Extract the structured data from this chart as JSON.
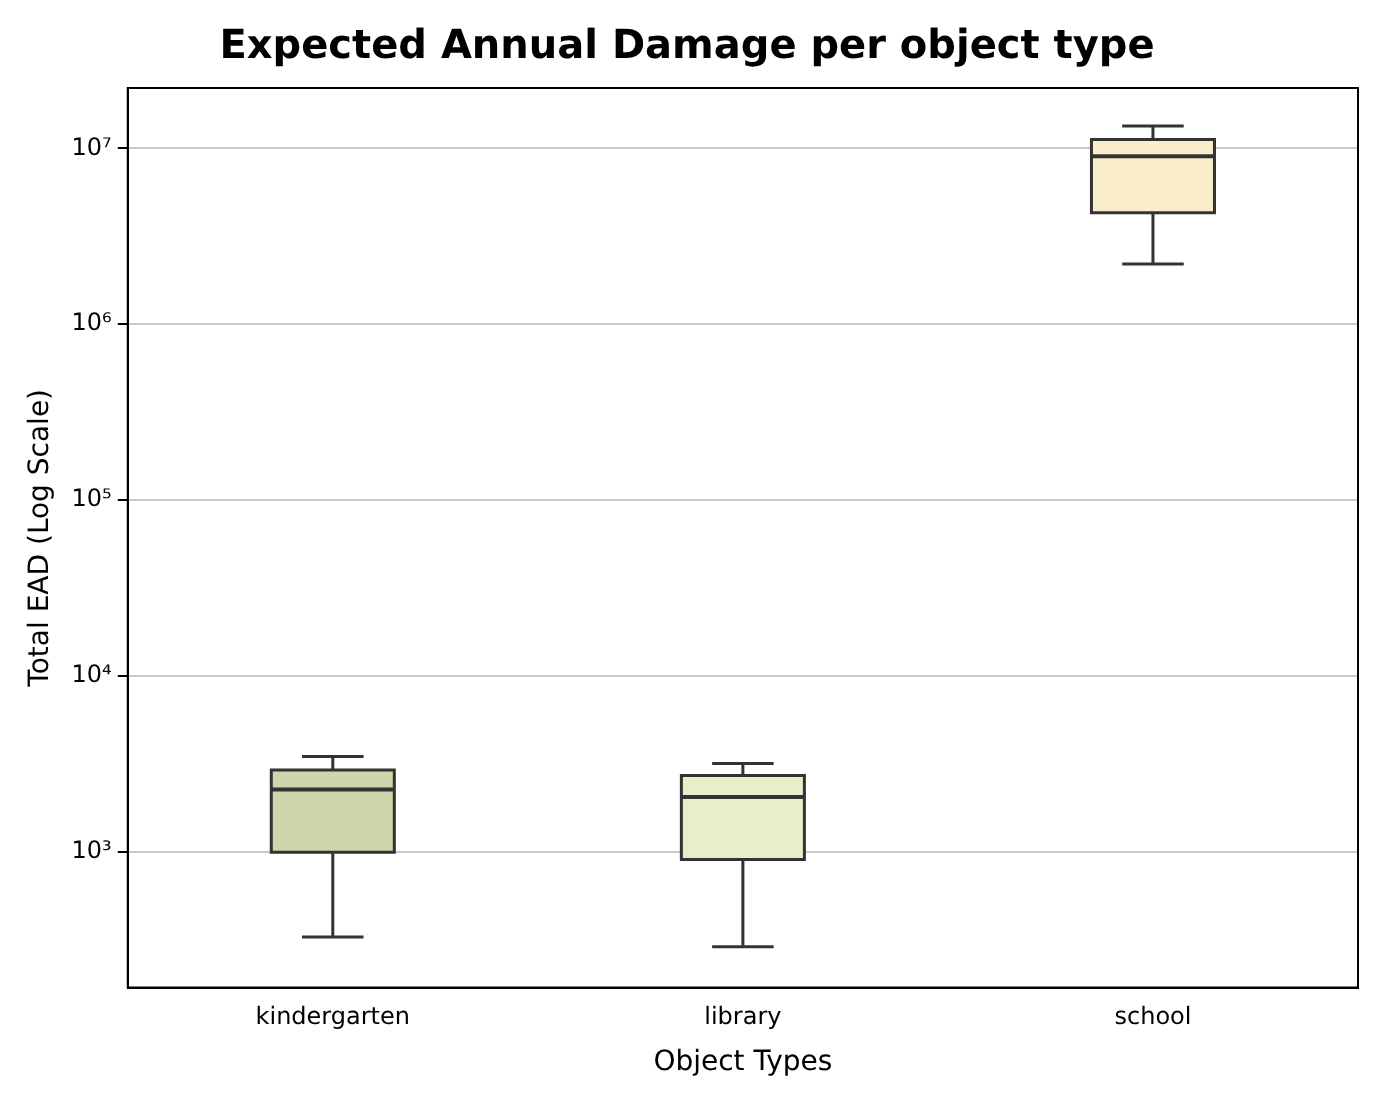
{
  "chart_data": {
    "type": "box",
    "title": "Expected Annual Damage per object type",
    "xlabel": "Object Types",
    "ylabel": "Total EAD (Log Scale)",
    "categories": [
      "kindergarten",
      "library",
      "school"
    ],
    "colors": [
      "#cfd6ab",
      "#e8edca",
      "#faedcc"
    ],
    "boxes": [
      {
        "low": 330,
        "q1": 1000,
        "median": 2270,
        "q3": 2930,
        "high": 3500
      },
      {
        "low": 290,
        "q1": 910,
        "median": 2060,
        "q3": 2730,
        "high": 3190
      },
      {
        "low": 2200000,
        "q1": 4300000,
        "median": 9000000,
        "q3": 11200000,
        "high": 13400000
      }
    ],
    "log": "y",
    "ylim": [
      170,
      22000000
    ],
    "yticks": [
      {
        "value": 1000,
        "label": "10³"
      },
      {
        "value": 10000,
        "label": "10⁴"
      },
      {
        "value": 100000,
        "label": "10⁵"
      },
      {
        "value": 1000000,
        "label": "10⁶"
      },
      {
        "value": 10000000,
        "label": "10⁷"
      }
    ],
    "grid": "y"
  }
}
